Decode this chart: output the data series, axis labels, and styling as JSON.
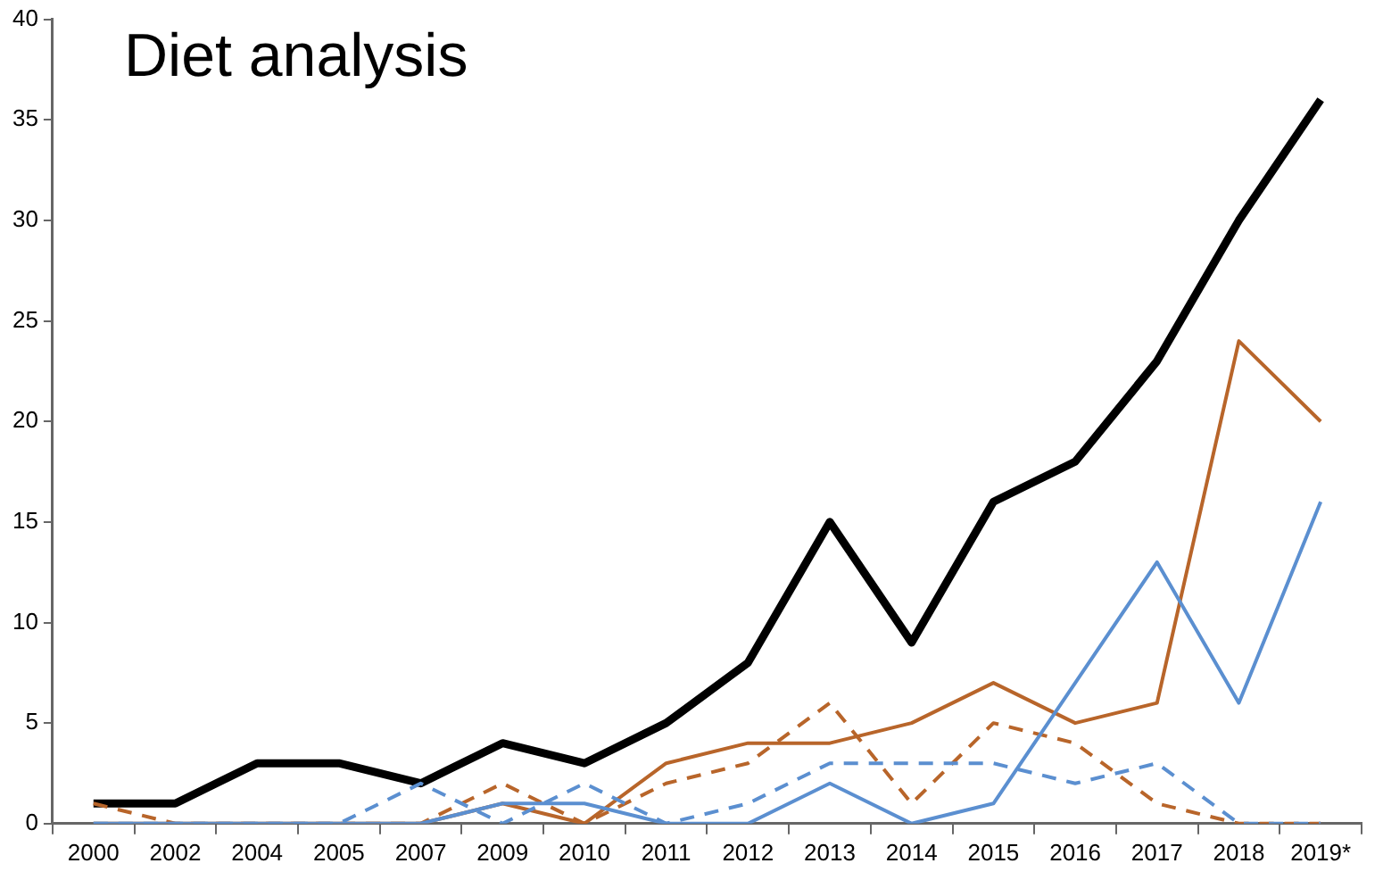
{
  "chart_data": {
    "type": "line",
    "title": "Diet analysis",
    "categories": [
      "2000",
      "2002",
      "2004",
      "2005",
      "2007",
      "2009",
      "2010",
      "2011",
      "2012",
      "2013",
      "2014",
      "2015",
      "2016",
      "2017",
      "2018",
      "2019*"
    ],
    "series": [
      {
        "color": "#000000",
        "line_style": "solid",
        "values": [
          1,
          1,
          3,
          3,
          2,
          4,
          3,
          5,
          8,
          15,
          9,
          16,
          18,
          23,
          30,
          36
        ]
      },
      {
        "color": "#b8652a",
        "line_style": "solid",
        "values": [
          0,
          0,
          0,
          0,
          0,
          1,
          0,
          3,
          4,
          4,
          5,
          7,
          5,
          6,
          24,
          20
        ]
      },
      {
        "color": "#b8652a",
        "line_style": "dashed",
        "values": [
          1,
          0,
          0,
          0,
          0,
          2,
          0,
          2,
          3,
          6,
          1,
          5,
          4,
          1,
          0,
          0
        ]
      },
      {
        "color": "#5b8fd0",
        "line_style": "solid",
        "values": [
          0,
          0,
          0,
          0,
          0,
          1,
          1,
          0,
          0,
          2,
          0,
          1,
          7,
          13,
          6,
          16
        ]
      },
      {
        "color": "#5b8fd0",
        "line_style": "dashed",
        "values": [
          0,
          0,
          0,
          0,
          2,
          0,
          2,
          0,
          1,
          3,
          3,
          3,
          2,
          3,
          0,
          0
        ]
      }
    ],
    "ylim": [
      0,
      40
    ],
    "yticks": [
      0,
      5,
      10,
      15,
      20,
      25,
      30,
      35,
      40
    ],
    "grid": false,
    "legend": false,
    "marker": "none"
  }
}
